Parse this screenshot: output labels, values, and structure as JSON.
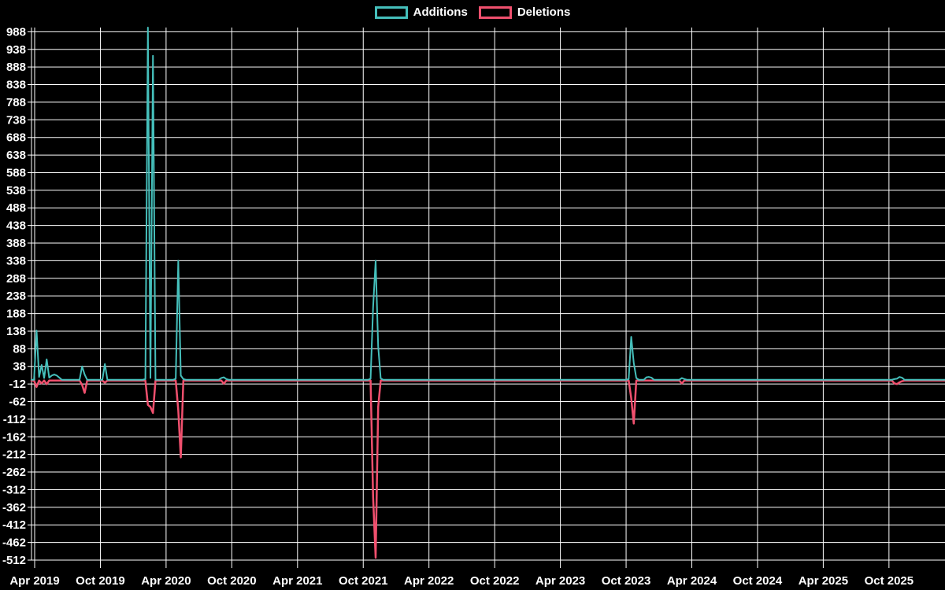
{
  "legend": {
    "items": [
      {
        "label": "Additions",
        "color": "#45bfbb"
      },
      {
        "label": "Deletions",
        "color": "#f0506e"
      }
    ]
  },
  "colors": {
    "background": "#000000",
    "grid": "#ffffff",
    "text": "#ffffff",
    "additions": "#45bfbb",
    "deletions": "#f0506e"
  },
  "chart_data": {
    "type": "line",
    "title": "",
    "xlabel": "",
    "ylabel": "",
    "legend_position": "top",
    "grid": true,
    "ylim": [
      -512,
      1000
    ],
    "y_tick_labels": [
      988,
      938,
      888,
      838,
      788,
      738,
      688,
      638,
      588,
      538,
      488,
      438,
      388,
      338,
      288,
      238,
      188,
      138,
      88,
      38,
      -12,
      -62,
      -112,
      -162,
      -212,
      -262,
      -312,
      -362,
      -412,
      -462,
      -512
    ],
    "x_tick_labels": [
      "Apr 2019",
      "Oct 2019",
      "Apr 2020",
      "Oct 2020",
      "Apr 2021",
      "Oct 2021",
      "Apr 2022",
      "Oct 2022",
      "Apr 2023",
      "Oct 2023",
      "Apr 2024",
      "Oct 2024",
      "Apr 2025",
      "Oct 2025"
    ],
    "x_unit": "week",
    "x_start": "late Mar 2019",
    "x_end": "early 2026",
    "weeks_total": 362,
    "baseline_value": 0,
    "series": [
      {
        "name": "Deletions",
        "color": "#f0506e",
        "default": 0,
        "points": [
          [
            2,
            -18
          ],
          [
            4,
            -8
          ],
          [
            6,
            -10
          ],
          [
            20,
            -12
          ],
          [
            21,
            -35
          ],
          [
            29,
            -6
          ],
          [
            46,
            -69
          ],
          [
            47,
            -75
          ],
          [
            48,
            -92
          ],
          [
            58,
            -84
          ],
          [
            59,
            -218
          ],
          [
            76,
            -9
          ],
          [
            135,
            -332
          ],
          [
            136,
            -503
          ],
          [
            137,
            -75
          ],
          [
            237,
            -50
          ],
          [
            238,
            -122
          ],
          [
            257,
            -8
          ],
          [
            341,
            -8
          ],
          [
            342,
            -10
          ],
          [
            343,
            -5
          ],
          [
            344,
            -2
          ]
        ]
      },
      {
        "name": "Additions",
        "color": "#45bfbb",
        "default": 0,
        "points": [
          [
            2,
            140
          ],
          [
            3,
            8
          ],
          [
            4,
            42
          ],
          [
            5,
            5
          ],
          [
            6,
            58
          ],
          [
            7,
            6
          ],
          [
            8,
            12
          ],
          [
            9,
            15
          ],
          [
            10,
            12
          ],
          [
            11,
            6
          ],
          [
            20,
            38
          ],
          [
            21,
            15
          ],
          [
            29,
            45
          ],
          [
            45,
            2
          ],
          [
            46,
            1000
          ],
          [
            47,
            5
          ],
          [
            48,
            920
          ],
          [
            57,
            3
          ],
          [
            58,
            338
          ],
          [
            59,
            12
          ],
          [
            60,
            2
          ],
          [
            75,
            5
          ],
          [
            76,
            7
          ],
          [
            77,
            2
          ],
          [
            134,
            3
          ],
          [
            135,
            207
          ],
          [
            136,
            338
          ],
          [
            137,
            95
          ],
          [
            138,
            4
          ],
          [
            236,
            2
          ],
          [
            237,
            122
          ],
          [
            238,
            48
          ],
          [
            239,
            5
          ],
          [
            243,
            7
          ],
          [
            244,
            8
          ],
          [
            245,
            6
          ],
          [
            257,
            5
          ],
          [
            258,
            2
          ],
          [
            341,
            2
          ],
          [
            342,
            3
          ],
          [
            343,
            8
          ],
          [
            344,
            6
          ]
        ]
      }
    ]
  }
}
